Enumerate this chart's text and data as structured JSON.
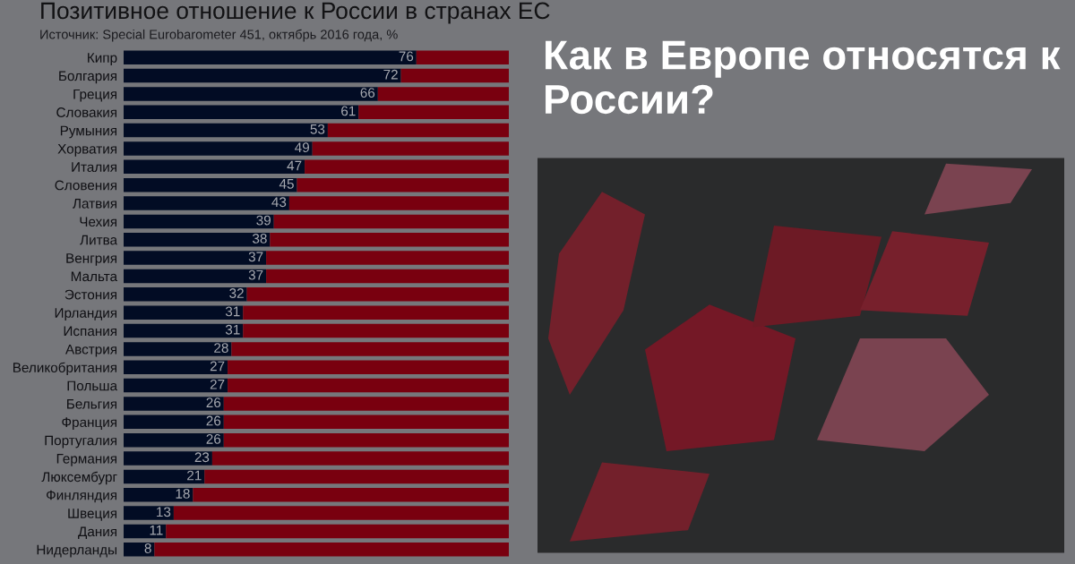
{
  "chart_data": {
    "type": "bar",
    "orientation": "horizontal",
    "stacked": true,
    "title": "Позитивное отношение к России в странах ЕС",
    "subtitle": "Источник: Special Eurobarometer 451, октябрь 2016 года, %",
    "annotations": [
      "Как в Европе относятся к России?"
    ],
    "categories": [
      "Кипр",
      "Болгария",
      "Греция",
      "Словакия",
      "Румыния",
      "Хорватия",
      "Италия",
      "Словения",
      "Латвия",
      "Чехия",
      "Литва",
      "Венгрия",
      "Мальта",
      "Эстония",
      "Ирландия",
      "Испания",
      "Австрия",
      "Великобритания",
      "Польша",
      "Бельгия",
      "Франция",
      "Португалия",
      "Германия",
      "Люксембург",
      "Финляндия",
      "Швеция",
      "Дания",
      "Нидерланды"
    ],
    "series": [
      {
        "color": "#020c24",
        "values": [
          76,
          72,
          66,
          61,
          53,
          49,
          47,
          45,
          43,
          39,
          38,
          37,
          37,
          32,
          31,
          31,
          28,
          27,
          27,
          26,
          26,
          26,
          23,
          21,
          18,
          13,
          11,
          8
        ],
        "value_labels": [
          "76",
          "72",
          "66",
          "61",
          "53",
          "49",
          "47",
          "45",
          "43",
          "39",
          "38",
          "37",
          "37",
          "32",
          "31",
          "31",
          "28",
          "27",
          "27",
          "26",
          "26",
          "26",
          "23",
          "21",
          "18",
          "13",
          "11",
          "8"
        ]
      },
      {
        "color": "#79000f",
        "values": [
          24,
          28,
          34,
          39,
          47,
          51,
          53,
          55,
          57,
          61,
          62,
          63,
          63,
          68,
          69,
          69,
          72,
          73,
          73,
          74,
          74,
          74,
          77,
          79,
          82,
          87,
          89,
          92
        ]
      }
    ],
    "xlim": [
      0,
      100
    ],
    "tick_labels": "y"
  }
}
